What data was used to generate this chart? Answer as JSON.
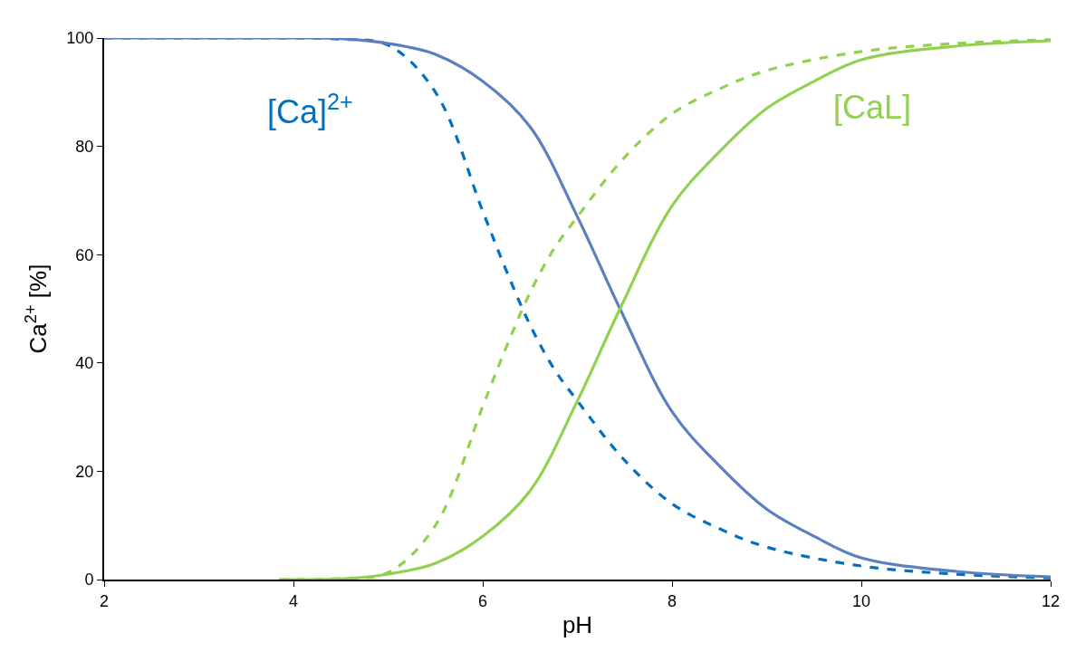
{
  "chart_data": {
    "type": "line",
    "xlabel": "pH",
    "ylabel": "Ca$^{2+}$ [%]",
    "xlim": [
      2,
      12
    ],
    "ylim": [
      0,
      100
    ],
    "xticks": [
      2,
      4,
      6,
      8,
      10,
      12
    ],
    "yticks": [
      0,
      20,
      40,
      60,
      80,
      100
    ],
    "grid": false,
    "marker": "none",
    "annotations": [
      "[Ca]$^{2+}$",
      "[CaL]"
    ],
    "series": [
      {
        "color": "#0070c0",
        "line_style": "dashed",
        "x": [
          2,
          3,
          4,
          4.5,
          5,
          5.5,
          6,
          6.25,
          6.5,
          6.75,
          7,
          7.5,
          8,
          8.5,
          9,
          10,
          11,
          12
        ],
        "values": [
          100,
          100,
          100,
          99.8,
          98.7,
          90,
          68,
          57,
          47,
          39,
          33,
          22,
          14,
          9.4,
          6,
          2.5,
          1,
          0.3
        ]
      },
      {
        "color": "#5b80bf",
        "line_style": "solid",
        "x": [
          2,
          3,
          4,
          4.5,
          5,
          5.5,
          6,
          6.5,
          7,
          7.45,
          8,
          8.5,
          9,
          9.5,
          10,
          11,
          12
        ],
        "values": [
          100,
          100,
          100,
          99.9,
          99,
          97,
          92,
          83.6,
          67,
          50,
          31,
          21,
          13,
          8,
          4,
          1.5,
          0.5
        ]
      },
      {
        "color": "#92d050",
        "line_style": "dashed",
        "x": [
          3.85,
          4,
          4.5,
          5,
          5.5,
          6,
          6.25,
          6.5,
          6.75,
          7,
          7.5,
          8,
          8.5,
          9,
          10,
          11,
          12
        ],
        "values": [
          0,
          0,
          0.2,
          1.3,
          10,
          32,
          43,
          53,
          61,
          67,
          78,
          86,
          90.6,
          94,
          97.5,
          99,
          99.7
        ]
      },
      {
        "color": "#92d050",
        "line_style": "solid",
        "x": [
          3.85,
          4,
          4.5,
          5,
          5.5,
          6,
          6.5,
          7,
          7.45,
          8,
          8.5,
          9,
          9.5,
          10,
          11,
          12
        ],
        "values": [
          0,
          0,
          0.1,
          1,
          3,
          8,
          16.4,
          33,
          50,
          69,
          79,
          87,
          92,
          96,
          98.5,
          99.5
        ]
      }
    ]
  }
}
